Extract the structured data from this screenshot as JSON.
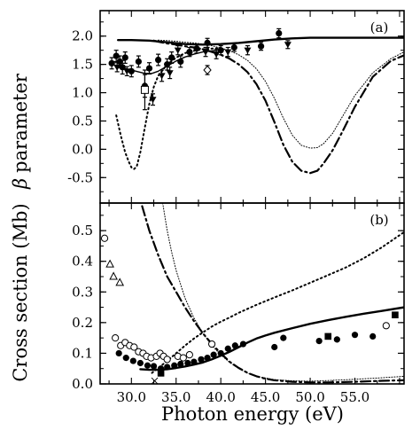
{
  "figure": {
    "y_label_top_symbol": "β",
    "y_label_top": "parameter",
    "y_label_bottom": "Cross section (Mb)",
    "x_label": "Photon energy (eV)"
  },
  "chart_data": [
    {
      "type": "line",
      "panel_label": "(a)",
      "xlim": [
        26.5,
        60.5
      ],
      "ylim": [
        -0.95,
        2.45
      ],
      "yticks": [
        "2.0",
        "1.5",
        "1.0",
        "0.5",
        "0.0",
        "-0.5"
      ],
      "ytick_values": [
        2.0,
        1.5,
        1.0,
        0.5,
        0.0,
        -0.5
      ],
      "grid": false,
      "series": [
        {
          "style": "solid",
          "x": [
            28.5,
            30,
            32,
            34,
            36,
            38,
            40,
            42,
            44,
            46,
            48,
            50,
            52,
            55,
            58,
            60.5
          ],
          "y": [
            1.93,
            1.93,
            1.92,
            1.89,
            1.86,
            1.85,
            1.86,
            1.88,
            1.91,
            1.94,
            1.96,
            1.97,
            1.97,
            1.97,
            1.97,
            1.97
          ]
        },
        {
          "style": "solid-thin",
          "x": [
            28.3,
            29.5,
            30.5,
            31.5,
            32.3,
            33,
            34,
            35,
            36,
            37,
            38,
            39,
            40
          ],
          "y": [
            1.45,
            1.42,
            1.38,
            1.34,
            1.34,
            1.38,
            1.47,
            1.56,
            1.63,
            1.68,
            1.72,
            1.74,
            1.76
          ]
        },
        {
          "style": "dash-dot",
          "x": [
            32.5,
            33,
            34,
            35,
            36,
            37,
            38,
            39,
            40,
            41,
            42,
            43,
            44,
            45,
            46,
            47,
            48,
            49,
            50,
            50.8,
            51.5,
            52.5,
            53.5,
            55,
            57,
            59,
            60.5
          ],
          "y": [
            1.92,
            1.9,
            1.87,
            1.85,
            1.82,
            1.8,
            1.77,
            1.72,
            1.67,
            1.6,
            1.5,
            1.36,
            1.15,
            0.86,
            0.48,
            0.08,
            -0.22,
            -0.38,
            -0.42,
            -0.38,
            -0.25,
            -0.02,
            0.28,
            0.75,
            1.28,
            1.56,
            1.66
          ]
        },
        {
          "style": "dotted-fine",
          "x": [
            33,
            34,
            35,
            36,
            37,
            38,
            39,
            40,
            41,
            42,
            43,
            44,
            45,
            46,
            47,
            48,
            49,
            50,
            50.8,
            51.5,
            52.5,
            53.5,
            55,
            57,
            59,
            60.5
          ],
          "y": [
            1.93,
            1.92,
            1.91,
            1.89,
            1.88,
            1.86,
            1.83,
            1.79,
            1.74,
            1.67,
            1.57,
            1.42,
            1.2,
            0.9,
            0.55,
            0.25,
            0.07,
            0.02,
            0.03,
            0.1,
            0.28,
            0.55,
            0.95,
            1.35,
            1.6,
            1.72
          ]
        },
        {
          "style": "dotted-coarse",
          "x": [
            28.3,
            28.8,
            29.3,
            29.7,
            30,
            30.3,
            30.6,
            31,
            31.5,
            32,
            32.5,
            33,
            34,
            35,
            36,
            37,
            38,
            39,
            40
          ],
          "y": [
            0.6,
            0.25,
            -0.05,
            -0.22,
            -0.32,
            -0.35,
            -0.3,
            -0.05,
            0.38,
            0.8,
            1.1,
            1.3,
            1.5,
            1.62,
            1.7,
            1.74,
            1.77,
            1.78,
            1.79
          ]
        }
      ],
      "points": [
        {
          "marker": "circle-filled",
          "x": 27.8,
          "y": 1.52,
          "err": 0.1
        },
        {
          "marker": "circle-filled",
          "x": 28.3,
          "y": 1.65,
          "err": 0.1
        },
        {
          "marker": "circle-filled",
          "x": 28.7,
          "y": 1.55,
          "err": 0.1
        },
        {
          "marker": "circle-filled",
          "x": 29.0,
          "y": 1.45,
          "err": 0.12
        },
        {
          "marker": "circle-filled",
          "x": 29.3,
          "y": 1.62,
          "err": 0.1
        },
        {
          "marker": "circle-filled",
          "x": 30.0,
          "y": 1.38,
          "err": 0.1
        },
        {
          "marker": "circle-filled",
          "x": 30.8,
          "y": 1.55,
          "err": 0.1
        },
        {
          "marker": "circle-filled",
          "x": 31.5,
          "y": 1.12,
          "err": 0.2
        },
        {
          "marker": "circle-filled",
          "x": 32.0,
          "y": 1.43,
          "err": 0.1
        },
        {
          "marker": "circle-filled",
          "x": 33.0,
          "y": 1.58,
          "err": 0.1
        },
        {
          "marker": "circle-filled",
          "x": 34.0,
          "y": 1.5,
          "err": 0.1
        },
        {
          "marker": "circle-filled",
          "x": 34.5,
          "y": 1.62,
          "err": 0.1
        },
        {
          "marker": "circle-filled",
          "x": 35.5,
          "y": 1.55,
          "err": 0.1
        },
        {
          "marker": "circle-filled",
          "x": 36.5,
          "y": 1.72,
          "err": 0.08
        },
        {
          "marker": "circle-filled",
          "x": 37.3,
          "y": 1.78,
          "err": 0.08
        },
        {
          "marker": "circle-filled",
          "x": 38.5,
          "y": 1.88,
          "err": 0.08
        },
        {
          "marker": "circle-filled",
          "x": 40.0,
          "y": 1.75,
          "err": 0.08
        },
        {
          "marker": "circle-filled",
          "x": 41.5,
          "y": 1.8,
          "err": 0.07
        },
        {
          "marker": "circle-filled",
          "x": 44.5,
          "y": 1.82,
          "err": 0.07
        },
        {
          "marker": "circle-filled",
          "x": 46.5,
          "y": 2.05,
          "err": 0.08
        },
        {
          "marker": "triangle-down",
          "x": 28.4,
          "y": 1.45,
          "err": 0.08
        },
        {
          "marker": "triangle-down",
          "x": 29.5,
          "y": 1.38,
          "err": 0.08
        },
        {
          "marker": "triangle-down",
          "x": 32.4,
          "y": 0.88,
          "err": 0.1
        },
        {
          "marker": "triangle-down",
          "x": 33.4,
          "y": 1.3,
          "err": 0.1
        },
        {
          "marker": "triangle-down",
          "x": 34.3,
          "y": 1.35,
          "err": 0.1
        },
        {
          "marker": "triangle-down",
          "x": 35.2,
          "y": 1.75,
          "err": 0.08
        },
        {
          "marker": "triangle-down",
          "x": 38.3,
          "y": 1.72,
          "err": 0.08
        },
        {
          "marker": "triangle-down",
          "x": 39.5,
          "y": 1.68,
          "err": 0.08
        },
        {
          "marker": "triangle-down",
          "x": 40.8,
          "y": 1.72,
          "err": 0.08
        },
        {
          "marker": "triangle-down",
          "x": 43.0,
          "y": 1.75,
          "err": 0.08
        },
        {
          "marker": "triangle-down",
          "x": 47.5,
          "y": 1.85,
          "err": 0.07
        },
        {
          "marker": "square-open",
          "x": 31.5,
          "y": 1.05,
          "err": 0.35
        },
        {
          "marker": "diamond-open",
          "x": 38.5,
          "y": 1.4,
          "err": 0.08
        }
      ]
    },
    {
      "type": "line",
      "panel_label": "(b)",
      "xlim": [
        26.5,
        60.5
      ],
      "ylim": [
        0,
        0.59
      ],
      "xticks": [
        "30.0",
        "35.0",
        "40.0",
        "45.0",
        "50.0",
        "55.0"
      ],
      "xtick_values": [
        30,
        35,
        40,
        45,
        50,
        55
      ],
      "yticks": [
        "0.5",
        "0.4",
        "0.3",
        "0.2",
        "0.1",
        "0.0"
      ],
      "ytick_values": [
        0.5,
        0.4,
        0.3,
        0.2,
        0.1,
        0.0
      ],
      "grid": false,
      "series": [
        {
          "style": "solid",
          "x": [
            31,
            32,
            33,
            34,
            35,
            36,
            37,
            38,
            39,
            40,
            41,
            42,
            43,
            44,
            45,
            46,
            48,
            50,
            52,
            54,
            56,
            58,
            60.5
          ],
          "y": [
            0.048,
            0.046,
            0.046,
            0.048,
            0.052,
            0.057,
            0.063,
            0.07,
            0.08,
            0.092,
            0.105,
            0.12,
            0.135,
            0.148,
            0.158,
            0.167,
            0.182,
            0.196,
            0.208,
            0.219,
            0.229,
            0.238,
            0.25
          ]
        },
        {
          "style": "dotted-coarse",
          "x": [
            32.3,
            33,
            34,
            35,
            36,
            37,
            38,
            39,
            40,
            41,
            42,
            44,
            46,
            48,
            50,
            52,
            54,
            56,
            58,
            60.5
          ],
          "y": [
            0.036,
            0.052,
            0.075,
            0.1,
            0.125,
            0.148,
            0.168,
            0.187,
            0.203,
            0.217,
            0.232,
            0.258,
            0.282,
            0.305,
            0.33,
            0.355,
            0.38,
            0.41,
            0.445,
            0.495
          ]
        },
        {
          "style": "dash-dot",
          "x": [
            31.2,
            32,
            33,
            34,
            35,
            36,
            37,
            38,
            39,
            40,
            41,
            42,
            43,
            44,
            45,
            46,
            48,
            50,
            52,
            55,
            58,
            60.5
          ],
          "y": [
            0.58,
            0.5,
            0.42,
            0.35,
            0.3,
            0.25,
            0.205,
            0.165,
            0.13,
            0.1,
            0.072,
            0.052,
            0.036,
            0.025,
            0.017,
            0.012,
            0.007,
            0.005,
            0.005,
            0.007,
            0.01,
            0.012
          ]
        },
        {
          "style": "dotted-fine",
          "x": [
            33.5,
            34,
            34.5,
            35,
            36,
            37,
            38,
            39,
            40,
            41,
            42,
            43,
            44,
            46,
            48,
            50,
            52,
            55,
            58,
            60.5
          ],
          "y": [
            0.59,
            0.5,
            0.43,
            0.37,
            0.28,
            0.215,
            0.165,
            0.125,
            0.095,
            0.07,
            0.05,
            0.035,
            0.025,
            0.014,
            0.01,
            0.009,
            0.011,
            0.015,
            0.02,
            0.025
          ]
        }
      ],
      "points": [
        {
          "marker": "circle-open",
          "x": 27.0,
          "y": 0.475
        },
        {
          "marker": "triangle-open",
          "x": 27.6,
          "y": 0.39
        },
        {
          "marker": "triangle-open",
          "x": 28.0,
          "y": 0.35
        },
        {
          "marker": "triangle-open",
          "x": 28.7,
          "y": 0.33
        },
        {
          "marker": "circle-open",
          "x": 28.2,
          "y": 0.15
        },
        {
          "marker": "circle-open",
          "x": 28.8,
          "y": 0.125
        },
        {
          "marker": "circle-open",
          "x": 29.3,
          "y": 0.135
        },
        {
          "marker": "circle-open",
          "x": 29.8,
          "y": 0.125
        },
        {
          "marker": "circle-open",
          "x": 30.3,
          "y": 0.12
        },
        {
          "marker": "circle-open",
          "x": 30.8,
          "y": 0.105
        },
        {
          "marker": "circle-open",
          "x": 31.3,
          "y": 0.1
        },
        {
          "marker": "circle-open",
          "x": 31.7,
          "y": 0.09
        },
        {
          "marker": "circle-open",
          "x": 32.2,
          "y": 0.085
        },
        {
          "marker": "circle-open",
          "x": 32.8,
          "y": 0.09
        },
        {
          "marker": "circle-open",
          "x": 33.2,
          "y": 0.1
        },
        {
          "marker": "circle-open",
          "x": 33.6,
          "y": 0.09
        },
        {
          "marker": "circle-open",
          "x": 34.0,
          "y": 0.08
        },
        {
          "marker": "circle-open",
          "x": 35.2,
          "y": 0.09
        },
        {
          "marker": "circle-open",
          "x": 35.8,
          "y": 0.085
        },
        {
          "marker": "circle-open",
          "x": 36.5,
          "y": 0.095
        },
        {
          "marker": "circle-open",
          "x": 39.0,
          "y": 0.13
        },
        {
          "marker": "circle-open",
          "x": 58.5,
          "y": 0.19
        },
        {
          "marker": "circle-filled",
          "x": 28.6,
          "y": 0.1
        },
        {
          "marker": "circle-filled",
          "x": 29.4,
          "y": 0.085
        },
        {
          "marker": "circle-filled",
          "x": 30.2,
          "y": 0.075
        },
        {
          "marker": "circle-filled",
          "x": 31.0,
          "y": 0.068
        },
        {
          "marker": "circle-filled",
          "x": 31.8,
          "y": 0.06
        },
        {
          "marker": "circle-filled",
          "x": 32.5,
          "y": 0.058
        },
        {
          "marker": "circle-filled",
          "x": 33.3,
          "y": 0.05
        },
        {
          "marker": "circle-filled",
          "x": 34.0,
          "y": 0.055
        },
        {
          "marker": "circle-filled",
          "x": 34.8,
          "y": 0.06
        },
        {
          "marker": "circle-filled",
          "x": 35.5,
          "y": 0.065
        },
        {
          "marker": "circle-filled",
          "x": 36.3,
          "y": 0.068
        },
        {
          "marker": "circle-filled",
          "x": 37.0,
          "y": 0.072
        },
        {
          "marker": "circle-filled",
          "x": 37.8,
          "y": 0.08
        },
        {
          "marker": "circle-filled",
          "x": 38.5,
          "y": 0.085
        },
        {
          "marker": "circle-filled",
          "x": 39.2,
          "y": 0.095
        },
        {
          "marker": "circle-filled",
          "x": 40.0,
          "y": 0.1
        },
        {
          "marker": "circle-filled",
          "x": 40.8,
          "y": 0.115
        },
        {
          "marker": "circle-filled",
          "x": 41.6,
          "y": 0.125
        },
        {
          "marker": "circle-filled",
          "x": 42.5,
          "y": 0.13
        },
        {
          "marker": "circle-filled",
          "x": 46.0,
          "y": 0.12
        },
        {
          "marker": "circle-filled",
          "x": 47.0,
          "y": 0.15
        },
        {
          "marker": "circle-filled",
          "x": 51.0,
          "y": 0.14
        },
        {
          "marker": "circle-filled",
          "x": 53.0,
          "y": 0.145
        },
        {
          "marker": "circle-filled",
          "x": 55.0,
          "y": 0.16
        },
        {
          "marker": "circle-filled",
          "x": 57.0,
          "y": 0.155
        },
        {
          "marker": "square-filled",
          "x": 33.3,
          "y": 0.035
        },
        {
          "marker": "square-filled",
          "x": 52.0,
          "y": 0.155
        },
        {
          "marker": "square-filled",
          "x": 59.5,
          "y": 0.225
        },
        {
          "marker": "cross",
          "x": 32.6,
          "y": 0.01
        }
      ]
    }
  ]
}
